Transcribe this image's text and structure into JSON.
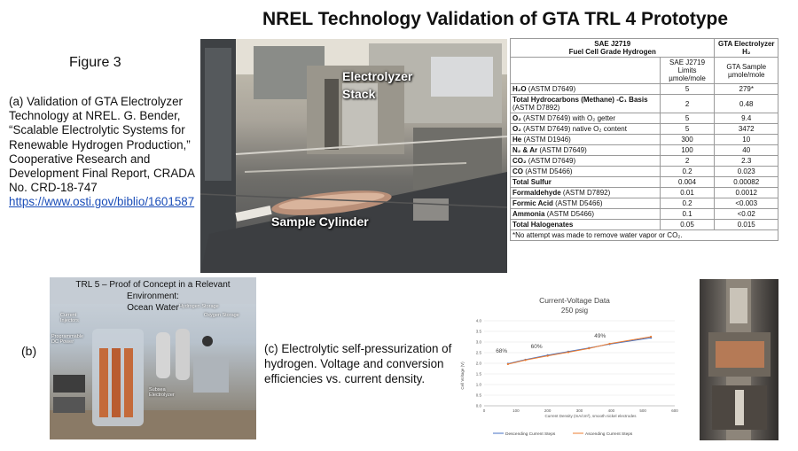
{
  "slide": {
    "title": "NREL Technology Validation of GTA TRL 4 Prototype",
    "figure_label": "Figure 3",
    "caption_a": "(a) Validation of GTA Electrolyzer Technology at NREL. G. Bender, “Scalable Electrolytic Systems for Renewable Hydrogen Production,” Cooperative Research and Development Final Report, CRADA No. CRD-18-747",
    "caption_a_link": "https://www.osti.gov/biblio/1601587",
    "photo_main_labels": {
      "electrolyzer": "Electrolyzer",
      "stack": "Stack",
      "cylinder": "Sample Cylinder"
    },
    "label_b": "(b)",
    "caption_c": "(c) Electrolytic self-pressurization of hydrogen. Voltage and conversion efficiencies vs. current density."
  },
  "trl5": {
    "header_line1": "TRL 5 – Proof of Concept in a Relevant Environment:",
    "header_line2": "Ocean Water",
    "tags": {
      "current_injectors": "Current Injectors",
      "power": "Programmable DC Power",
      "hydrogen": "Hydrogen Storage",
      "oxygen": "Oxygen Storage",
      "subsea": "Subsea Electrolyzer"
    }
  },
  "table": {
    "head_left": "SAE J2719",
    "head_left2": "Fuel Cell Grade Hydrogen",
    "head_right": "GTA Electrolyzer H₂",
    "col2": "SAE J2719 Limits",
    "col3": "GTA Sample",
    "unit": "µmole/mole",
    "rows": [
      {
        "name": "H₂O",
        "detail": "(ASTM D7649)",
        "limit": "5",
        "sample": "279*"
      },
      {
        "name": "Total Hydrocarbons (Methane) -C₁ Basis",
        "detail": "(ASTM D7892)",
        "limit": "2",
        "sample": "0.48"
      },
      {
        "name": "O₂",
        "detail": "(ASTM D7649) with O₂ getter",
        "limit": "5",
        "sample": "9.4"
      },
      {
        "name": "O₂",
        "detail": "(ASTM D7649) native O₂ content",
        "limit": "5",
        "sample": "3472"
      },
      {
        "name": "He",
        "detail": "(ASTM D1946)",
        "limit": "300",
        "sample": "10"
      },
      {
        "name": "N₂ & Ar",
        "detail": "(ASTM D7649)",
        "limit": "100",
        "sample": "40"
      },
      {
        "name": "CO₂",
        "detail": "(ASTM D7649)",
        "limit": "2",
        "sample": "2.3"
      },
      {
        "name": "CO",
        "detail": "(ASTM D5466)",
        "limit": "0.2",
        "sample": "0.023"
      },
      {
        "name": "Total Sulfur",
        "detail": "",
        "limit": "0.004",
        "sample": "0.00082"
      },
      {
        "name": "Formaldehyde",
        "detail": "(ASTM D7892)",
        "limit": "0.01",
        "sample": "0.0012"
      },
      {
        "name": "Formic Acid",
        "detail": "(ASTM D5466)",
        "limit": "0.2",
        "sample": "<0.003"
      },
      {
        "name": "Ammonia",
        "detail": "(ASTM D5466)",
        "limit": "0.1",
        "sample": "<0.02"
      },
      {
        "name": "Total Halogenates",
        "detail": "",
        "limit": "0.05",
        "sample": "0.015"
      }
    ],
    "footnote": "*No attempt was made to remove water vapor or CO₂."
  },
  "chart_data": {
    "type": "line",
    "title": "Current-Voltage Data",
    "subtitle": "250 psig",
    "xlabel": "Current Density (mA/cm²), smooth nickel electrodes",
    "ylabel": "Cell Voltage (V)",
    "xlim": [
      0,
      600
    ],
    "ylim": [
      0,
      4.0
    ],
    "xticks": [
      0,
      100,
      200,
      300,
      400,
      500,
      600
    ],
    "yticks": [
      0,
      0.5,
      1.0,
      1.5,
      2.0,
      2.5,
      3.0,
      3.5,
      4.0
    ],
    "series": [
      {
        "name": "Descending Current Steps",
        "color": "#4472c4",
        "x": [
          75,
          130,
          200,
          265,
          330,
          395,
          525
        ],
        "y": [
          1.98,
          2.17,
          2.38,
          2.55,
          2.72,
          2.9,
          3.2
        ]
      },
      {
        "name": "Ascending Current Steps",
        "color": "#ed7d31",
        "x": [
          75,
          130,
          200,
          265,
          330,
          395,
          525
        ],
        "y": [
          1.96,
          2.15,
          2.35,
          2.52,
          2.7,
          2.92,
          3.25
        ]
      }
    ],
    "annotations": [
      {
        "text": "68%",
        "x": 55,
        "y": 2.5
      },
      {
        "text": "60%",
        "x": 165,
        "y": 2.7
      },
      {
        "text": "49%",
        "x": 365,
        "y": 3.2
      }
    ],
    "legend_position": "bottom"
  }
}
